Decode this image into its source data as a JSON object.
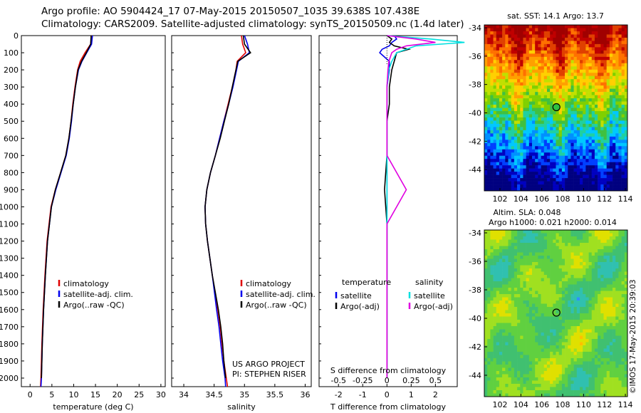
{
  "title_line1": "Argo profile: AO 5904424_17 07-May-2015 20150507_1035 39.638S 107.438E",
  "title_line2": "Climatology: CARS2009. Satellite-adjusted climatology: synTS_20150509.nc (1.4d later)",
  "watermark": "©IMOS 17-May-2015 20:39:03",
  "colors": {
    "climatology": "#e00000",
    "satellite": "#0000ee",
    "argo": "#000000",
    "sal_satellite": "#00e0e0",
    "sal_argo": "#e000e0"
  },
  "chart_data": [
    {
      "type": "line",
      "xlabel": "temperature (deg C)",
      "ylabel": "",
      "xlim": [
        -2,
        31
      ],
      "ylim": [
        2050,
        0
      ],
      "xticks": [
        "0",
        "5",
        "10",
        "15",
        "20",
        "25",
        "30"
      ],
      "yticks": [
        "0",
        "100",
        "200",
        "300",
        "400",
        "500",
        "600",
        "700",
        "800",
        "900",
        "1000",
        "1100",
        "1200",
        "1300",
        "1400",
        "1500",
        "1600",
        "1700",
        "1800",
        "1900",
        "2000"
      ],
      "legend": [
        "climatology",
        "satellite-adj. clim.",
        "Argo(..raw -QC)"
      ],
      "depth": [
        0,
        50,
        100,
        150,
        200,
        300,
        400,
        500,
        600,
        700,
        800,
        900,
        1000,
        1200,
        1400,
        1600,
        1800,
        2000,
        2050
      ],
      "series": [
        {
          "name": "climatology",
          "values": [
            14.1,
            13.9,
            12.6,
            11.5,
            10.9,
            10.3,
            9.8,
            9.4,
            8.9,
            8.2,
            7.0,
            5.8,
            4.8,
            3.9,
            3.4,
            3.0,
            2.7,
            2.5,
            2.4
          ]
        },
        {
          "name": "satellite-adj. clim.",
          "values": [
            14.3,
            14.1,
            13.0,
            11.9,
            11.1,
            10.4,
            9.9,
            9.5,
            9.0,
            8.3,
            7.1,
            5.9,
            4.9,
            4.0,
            3.5,
            3.1,
            2.8,
            2.6,
            2.5
          ]
        },
        {
          "name": "Argo(..raw -QC)",
          "values": [
            14.0,
            13.9,
            12.9,
            11.8,
            11.0,
            10.4,
            9.9,
            9.4,
            8.9,
            8.2,
            7.0,
            5.8,
            4.9,
            4.0,
            3.5,
            3.1,
            2.8,
            2.6,
            null
          ]
        }
      ]
    },
    {
      "type": "line",
      "xlabel": "salinity",
      "xlim": [
        33.8,
        36.1
      ],
      "ylim": [
        2050,
        0
      ],
      "xticks": [
        "34",
        "34.5",
        "35",
        "35.5",
        "36"
      ],
      "legend": [
        "climatology",
        "satellite-adj. clim.",
        "Argo(..raw -QC)"
      ],
      "annotation": [
        "US ARGO PROJECT",
        "PI: STEPHEN RISER"
      ],
      "depth": [
        0,
        50,
        100,
        150,
        200,
        300,
        400,
        500,
        600,
        700,
        800,
        900,
        1000,
        1100,
        1200,
        1400,
        1600,
        1700,
        1800,
        1900,
        2000,
        2050
      ],
      "series": [
        {
          "name": "climatology",
          "values": [
            34.95,
            34.97,
            35.02,
            34.88,
            34.86,
            34.8,
            34.73,
            34.66,
            34.59,
            34.52,
            34.44,
            34.38,
            34.35,
            34.36,
            34.39,
            34.47,
            34.56,
            34.6,
            34.63,
            34.66,
            34.7,
            34.72
          ]
        },
        {
          "name": "satellite-adj. clim.",
          "values": [
            35.0,
            35.05,
            35.08,
            34.9,
            34.87,
            34.81,
            34.74,
            34.66,
            34.59,
            34.52,
            34.44,
            34.38,
            34.35,
            34.36,
            34.39,
            34.47,
            34.54,
            34.58,
            34.61,
            34.64,
            34.68,
            34.69
          ]
        },
        {
          "name": "Argo(..raw -QC)",
          "values": [
            34.98,
            35.0,
            35.1,
            34.89,
            34.86,
            34.8,
            34.74,
            34.67,
            34.6,
            34.52,
            34.44,
            34.38,
            34.35,
            34.36,
            34.39,
            34.47,
            34.57,
            34.61,
            34.64,
            34.66,
            34.69,
            null
          ]
        }
      ]
    },
    {
      "type": "line",
      "xlabel": "T difference from climatology",
      "xlabel_top": "S difference from climatology",
      "xlim": [
        -2.8,
        2.9
      ],
      "ylim": [
        2050,
        0
      ],
      "xticks": [
        "-2",
        "-1",
        "0",
        "1",
        "2"
      ],
      "xticks_top": [
        "-0.5",
        "-0.25",
        "0",
        "0.25",
        "0.5"
      ],
      "legend_left_title": "temperature",
      "legend_right_title": "salinity",
      "legend": [
        "satellite",
        "Argo(-adj)",
        "satellite",
        "Argo(-adj)"
      ],
      "depth": [
        0,
        20,
        40,
        60,
        80,
        100,
        150,
        200,
        300,
        400,
        500,
        700,
        900,
        1100,
        1500,
        2000
      ],
      "series": [
        {
          "name": "temperature satellite",
          "values": [
            0.3,
            0.4,
            0.2,
            0.1,
            -0.2,
            -0.3,
            0.1,
            0.1,
            0.0,
            0.0,
            0.0,
            0.0,
            0.0,
            0.0,
            0.0,
            0.0
          ]
        },
        {
          "name": "temperature Argo(-adj)",
          "values": [
            0.0,
            0.2,
            0.1,
            0.3,
            0.9,
            0.4,
            0.3,
            0.2,
            0.1,
            0.1,
            0.0,
            0.0,
            -0.1,
            0.0,
            0.0,
            0.0
          ]
        },
        {
          "name": "salinity satellite",
          "values": [
            0.0,
            0.45,
            0.8,
            0.3,
            0.2,
            0.1,
            0.05,
            0.02,
            0.0,
            0.0,
            0.0,
            0.0,
            0.0,
            0.0,
            0.0,
            0.0
          ]
        },
        {
          "name": "salinity Argo(-adj)",
          "values": [
            0.0,
            0.3,
            0.5,
            0.2,
            0.1,
            0.05,
            0.02,
            0.01,
            0.0,
            0.0,
            0.0,
            0.0,
            0.2,
            0.0,
            0.0,
            0.0
          ]
        }
      ]
    },
    {
      "type": "heatmap",
      "title": "sat. SST: 14.1  Argo: 13.7",
      "xlim": [
        100.5,
        114.2
      ],
      "ylim": [
        -45.5,
        -33.8
      ],
      "xticks": [
        "102",
        "104",
        "106",
        "108",
        "110",
        "112",
        "114"
      ],
      "yticks": [
        "-34",
        "-36",
        "-38",
        "-40",
        "-42",
        "-44"
      ],
      "marker": {
        "lon": 107.4,
        "lat": -39.6
      }
    },
    {
      "type": "heatmap",
      "title_line1": "Altim. SLA: 0.048",
      "title_line2": "Argo h1000: 0.021 h2000: 0.014",
      "xlim": [
        100.5,
        114.2
      ],
      "ylim": [
        -45.5,
        -33.8
      ],
      "xticks": [
        "102",
        "104",
        "106",
        "108",
        "110",
        "112",
        "114"
      ],
      "yticks": [
        "-34",
        "-36",
        "-38",
        "-40",
        "-42",
        "-44"
      ],
      "marker": {
        "lon": 107.4,
        "lat": -39.6
      }
    }
  ]
}
